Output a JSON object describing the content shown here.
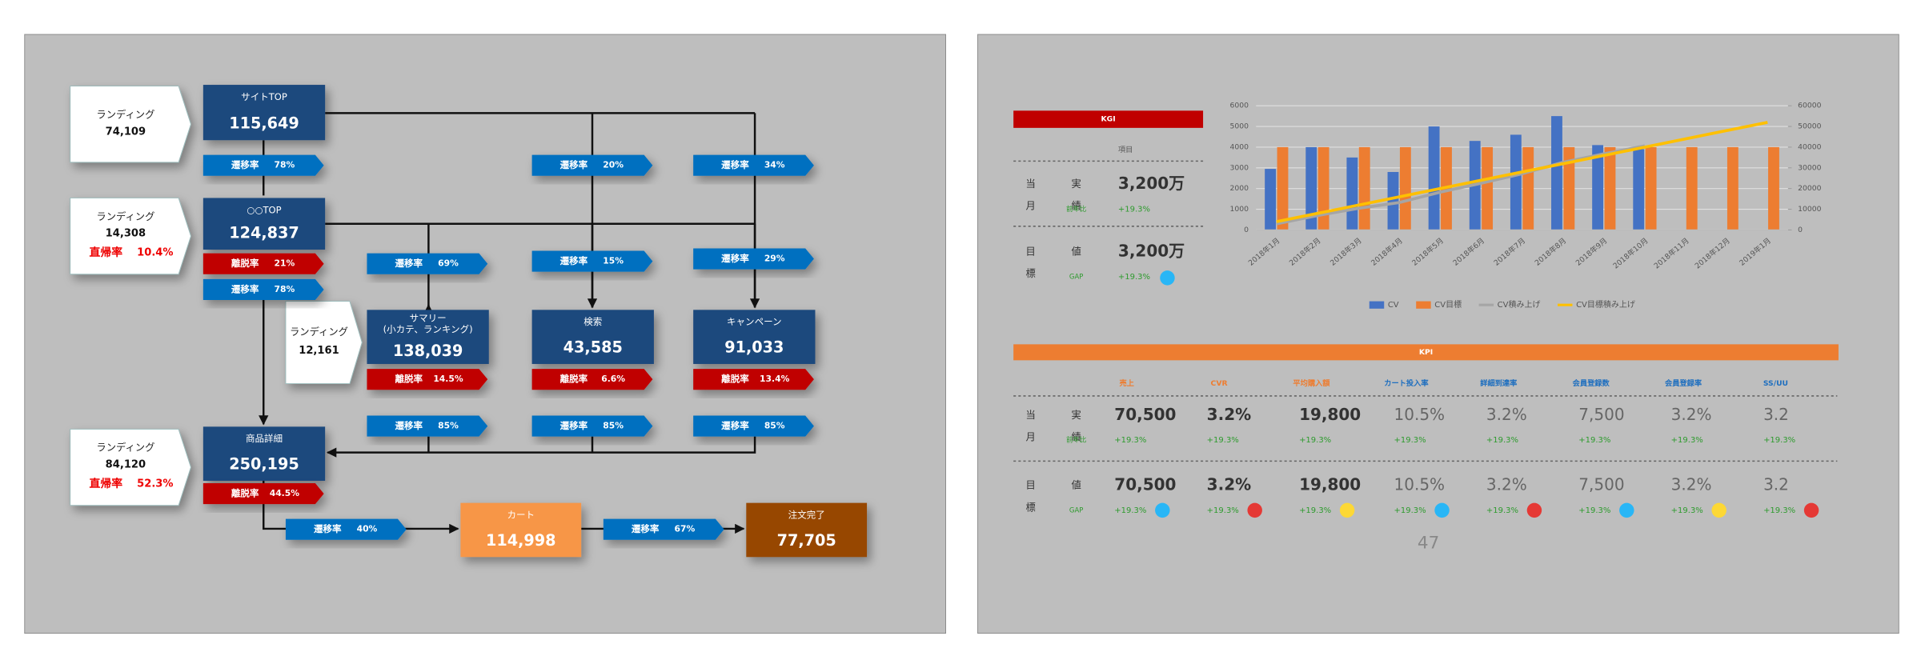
{
  "flow": {
    "landings": [
      {
        "label": "ランディング",
        "value": "74,109"
      },
      {
        "label": "ランディング",
        "value": "14,308",
        "bounce_label": "直帰率",
        "bounce": "10.4%"
      },
      {
        "label": "ランディング",
        "value": "12,161"
      },
      {
        "label": "ランディング",
        "value": "84,120",
        "bounce_label": "直帰率",
        "bounce": "52.3%"
      }
    ],
    "pages": [
      {
        "lines": [
          "サイトTOP"
        ],
        "value": "115,649",
        "color": "#1f497d"
      },
      {
        "lines": [
          "○○TOP"
        ],
        "value": "124,837",
        "color": "#1f497d"
      },
      {
        "lines": [
          "サマリー",
          "(小カテ、ランキング)"
        ],
        "value": "138,039",
        "color": "#1f497d"
      },
      {
        "lines": [
          "検索"
        ],
        "value": "43,585",
        "color": "#1f497d"
      },
      {
        "lines": [
          "キャンペーン"
        ],
        "value": "91,033",
        "color": "#1f497d"
      },
      {
        "lines": [
          "商品詳細"
        ],
        "value": "250,195",
        "color": "#1f497d"
      },
      {
        "lines": [
          "カート"
        ],
        "value": "114,998",
        "color": "#f79646"
      },
      {
        "lines": [
          "注文完了"
        ],
        "value": "77,705",
        "color": "#974706"
      }
    ],
    "rates": [
      {
        "label": "遷移率",
        "value": "78%",
        "color": "#0070c0"
      },
      {
        "label": "遷移率",
        "value": "20%",
        "color": "#0070c0"
      },
      {
        "label": "遷移率",
        "value": "34%",
        "color": "#0070c0"
      },
      {
        "label": "離脱率",
        "value": "21%",
        "color": "#c00000"
      },
      {
        "label": "遷移率",
        "value": "78%",
        "color": "#0070c0"
      },
      {
        "label": "遷移率",
        "value": "69%",
        "color": "#0070c0"
      },
      {
        "label": "遷移率",
        "value": "15%",
        "color": "#0070c0"
      },
      {
        "label": "遷移率",
        "value": "29%",
        "color": "#0070c0"
      },
      {
        "label": "離脱率",
        "value": "14.5%",
        "color": "#c00000"
      },
      {
        "label": "離脱率",
        "value": "6.6%",
        "color": "#c00000"
      },
      {
        "label": "離脱率",
        "value": "13.4%",
        "color": "#c00000"
      },
      {
        "label": "遷移率",
        "value": "85%",
        "color": "#0070c0"
      },
      {
        "label": "遷移率",
        "value": "85%",
        "color": "#0070c0"
      },
      {
        "label": "遷移率",
        "value": "85%",
        "color": "#0070c0"
      },
      {
        "label": "離脱率",
        "value": "44.5%",
        "color": "#c00000"
      },
      {
        "label": "遷移率",
        "value": "40%",
        "color": "#0070c0"
      },
      {
        "label": "遷移率",
        "value": "67%",
        "color": "#0070c0"
      }
    ]
  },
  "kgi": {
    "title": "KGI",
    "column_header": "項目",
    "rows": [
      {
        "period": [
          "当",
          "月"
        ],
        "label": [
          "実",
          "績"
        ],
        "value": "3,200万",
        "sub_label": "前年比",
        "sub_value": "+19.3%"
      },
      {
        "period": [
          "目",
          "標"
        ],
        "label": [
          "値"
        ],
        "value": "3,200万",
        "sub_label": "GAP",
        "sub_value": "+19.3%",
        "icon_color": "#29b6f6"
      }
    ]
  },
  "chart_data": {
    "type": "bar",
    "categories": [
      "2018年1月",
      "2018年2月",
      "2018年3月",
      "2018年4月",
      "2018年5月",
      "2018年6月",
      "2018年7月",
      "2018年8月",
      "2018年9月",
      "2018年10月",
      "2018年11月",
      "2018年12月",
      "2019年1月"
    ],
    "series": [
      {
        "name": "CV",
        "type": "bar",
        "color": "#4472c4",
        "values": [
          2950,
          4000,
          3500,
          2800,
          5000,
          4300,
          4600,
          5500,
          4100,
          3900,
          null,
          null,
          null
        ]
      },
      {
        "name": "CV目標",
        "type": "bar",
        "color": "#ed7d31",
        "values": [
          4000,
          4000,
          4000,
          4000,
          4000,
          4000,
          4000,
          4000,
          4000,
          4000,
          4000,
          4000,
          4000
        ]
      },
      {
        "name": "CV積み上げ",
        "type": "line",
        "axis": "y2",
        "color": "#a5a5a5",
        "values": [
          2950,
          6950,
          10450,
          13250,
          18250,
          22550,
          27150,
          32650,
          36750,
          40650,
          null,
          null,
          null
        ]
      },
      {
        "name": "CV目標積み上げ",
        "type": "line",
        "axis": "y2",
        "color": "#ffc000",
        "values": [
          4000,
          8000,
          12000,
          16000,
          20000,
          24000,
          28000,
          32000,
          36000,
          40000,
          44000,
          48000,
          52000
        ]
      }
    ],
    "ylim": [
      0,
      6000
    ],
    "yticks": [
      0,
      1000,
      2000,
      3000,
      4000,
      5000,
      6000
    ],
    "y2lim": [
      0,
      60000
    ],
    "y2ticks": [
      0,
      10000,
      20000,
      30000,
      40000,
      50000,
      60000
    ],
    "grid": true,
    "legend": "bottom"
  },
  "kpi": {
    "title": "KPI",
    "headers": [
      "売上",
      "CVR",
      "平均購入額",
      "カート投入率",
      "詳細到達率",
      "会員登録数",
      "会員登録率",
      "SS/UU"
    ],
    "header_colors": [
      "#ed7d31",
      "#ed7d31",
      "#ed7d31",
      "#1f6fbf",
      "#1f6fbf",
      "#1f6fbf",
      "#1f6fbf",
      "#1f6fbf"
    ],
    "rows": [
      {
        "period": [
          "当",
          "月"
        ],
        "label": [
          "実",
          "績"
        ],
        "sub_label": "前年比",
        "values": [
          "70,500",
          "3.2%",
          "19,800",
          "10.5%",
          "3.2%",
          "7,500",
          "3.2%",
          "3.2"
        ],
        "subs": [
          "+19.3%",
          "+19.3%",
          "+19.3%",
          "+19.3%",
          "+19.3%",
          "+19.3%",
          "+19.3%",
          "+19.3%"
        ]
      },
      {
        "period": [
          "目",
          "標"
        ],
        "label": [
          "値"
        ],
        "sub_label": "GAP",
        "values": [
          "70,500",
          "3.2%",
          "19,800",
          "10.5%",
          "3.2%",
          "7,500",
          "3.2%",
          "3.2"
        ],
        "subs": [
          "+19.3%",
          "+19.3%",
          "+19.3%",
          "+19.3%",
          "+19.3%",
          "+19.3%",
          "+19.3%",
          "+19.3%"
        ],
        "icon_colors": [
          "#29b6f6",
          "#e53935",
          "#fdd835",
          "#29b6f6",
          "#e53935",
          "#29b6f6",
          "#fdd835",
          "#e53935"
        ]
      }
    ]
  },
  "page_number": "47"
}
